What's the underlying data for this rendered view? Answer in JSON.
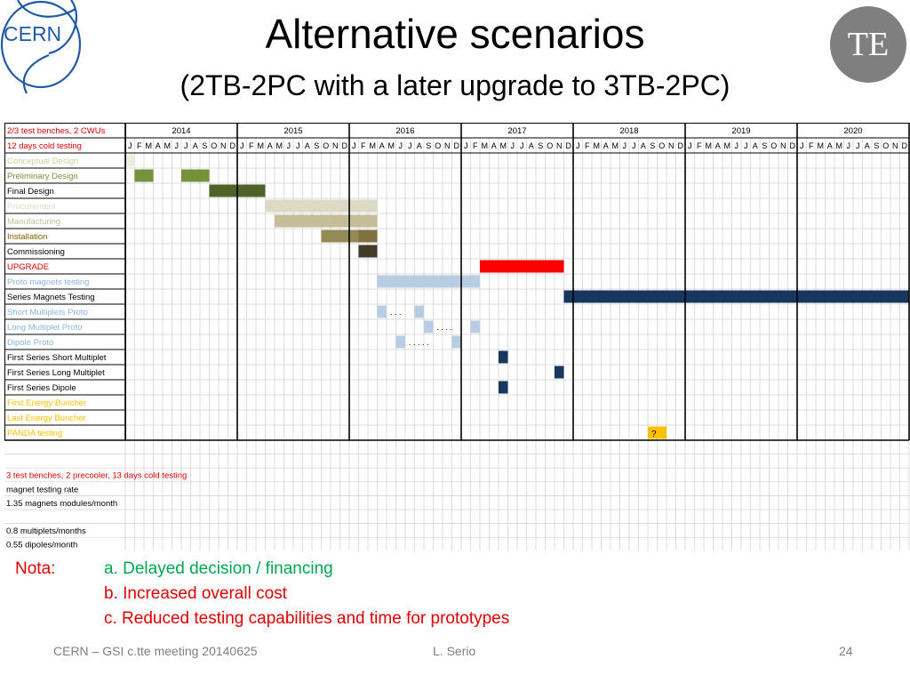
{
  "slide": {
    "title": "Alternative scenarios",
    "subtitle": "(2TB-2PC with a later upgrade to 3TB-2PC)",
    "badge": "TE",
    "logo_text": "CERN"
  },
  "gantt": {
    "header_row_labels": [
      "2/3 test benches, 2 CWUs",
      "12 days cold testing"
    ],
    "header_colors": [
      "#e00000",
      "#e00000"
    ],
    "years": [
      "2014",
      "2015",
      "2016",
      "2017",
      "2018",
      "2019",
      "2020"
    ],
    "months": [
      "J",
      "F",
      "M",
      "A",
      "M",
      "J",
      "J",
      "A",
      "S",
      "O",
      "N",
      "D"
    ],
    "tasks": [
      {
        "name": "Conceptual Design",
        "color": "#c4d79b",
        "bars": [
          {
            "start": 0,
            "end": 1,
            "color": "#ebf1de"
          }
        ]
      },
      {
        "name": "Preliminary Design",
        "color": "#76933c",
        "bars": [
          {
            "start": 1,
            "end": 3,
            "color": "#76933c"
          },
          {
            "start": 6,
            "end": 9,
            "color": "#76933c"
          }
        ]
      },
      {
        "name": "Final Design",
        "color": "#000000",
        "bars": [
          {
            "start": 9,
            "end": 15,
            "color": "#4f6228"
          }
        ]
      },
      {
        "name": "Procurement",
        "color": "#ddd9c4",
        "bars": [
          {
            "start": 15,
            "end": 27,
            "color": "#ddd9c4"
          }
        ]
      },
      {
        "name": "Manufacturing",
        "color": "#c4bd97",
        "bars": [
          {
            "start": 16,
            "end": 27,
            "color": "#c4bd97"
          }
        ]
      },
      {
        "name": "Installation",
        "color": "#7f6000",
        "bars": [
          {
            "start": 21,
            "end": 25,
            "color": "#948a54"
          },
          {
            "start": 25,
            "end": 27,
            "color": "#7f7240"
          }
        ]
      },
      {
        "name": "Commissioning",
        "color": "#000000",
        "bars": [
          {
            "start": 25,
            "end": 27,
            "color": "#403c26"
          }
        ]
      },
      {
        "name": "UPGRADE",
        "color": "#e00000",
        "bars": [
          {
            "start": 38,
            "end": 47,
            "color": "#ff0000"
          }
        ]
      },
      {
        "name": "Proto magnets testing",
        "color": "#8db4e2",
        "bars": [
          {
            "start": 27,
            "end": 38,
            "color": "#b8cce4"
          }
        ]
      },
      {
        "name": "Series Magnets Testing",
        "color": "#000000",
        "bars": [
          {
            "start": 47,
            "end": 84,
            "color": "#17375e"
          }
        ]
      },
      {
        "name": "Short Multiplets Proto",
        "color": "#8db4e2",
        "bars": [
          {
            "start": 27,
            "end": 28,
            "color": "#b8cce4"
          },
          {
            "start": 31,
            "end": 32,
            "color": "#b8cce4"
          }
        ]
      },
      {
        "name": "Long Multiplet Proto",
        "color": "#8db4e2",
        "bars": [
          {
            "start": 32,
            "end": 33,
            "color": "#b8cce4"
          },
          {
            "start": 37,
            "end": 38,
            "color": "#b8cce4"
          }
        ]
      },
      {
        "name": "Dipole Proto",
        "color": "#8db4e2",
        "bars": [
          {
            "start": 29,
            "end": 30,
            "color": "#b8cce4"
          },
          {
            "start": 35,
            "end": 36,
            "color": "#b8cce4"
          }
        ]
      },
      {
        "name": "First Series Short Multiplet",
        "color": "#000000",
        "bars": [
          {
            "start": 40,
            "end": 41,
            "color": "#17375e"
          }
        ]
      },
      {
        "name": "First Series Long Multiplet",
        "color": "#000000",
        "bars": [
          {
            "start": 46,
            "end": 47,
            "color": "#17375e"
          }
        ]
      },
      {
        "name": "First Series Dipole",
        "color": "#000000",
        "bars": [
          {
            "start": 40,
            "end": 41,
            "color": "#17375e"
          }
        ]
      },
      {
        "name": "First Energy Buncher",
        "color": "#ffc000",
        "bars": []
      },
      {
        "name": "Last Energy Buncher",
        "color": "#ffc000",
        "bars": []
      },
      {
        "name": "PANDA testing",
        "color": "#ffc000",
        "bars": [
          {
            "start": 56,
            "end": 58,
            "color": "#ffc000",
            "label": "?"
          }
        ]
      }
    ],
    "dots": [
      {
        "row": 10,
        "after": 28,
        "text": ". . ."
      },
      {
        "row": 11,
        "after": 33,
        "text": ". . . ."
      },
      {
        "row": 12,
        "after": 30,
        "text": ". . . . ."
      }
    ],
    "notes": [
      {
        "text": "",
        "color": "#000000"
      },
      {
        "text": "",
        "color": "#000000"
      },
      {
        "text": "3 test benches, 2 precooler, 13 days cold testing",
        "color": "#e00000"
      },
      {
        "text": "magnet testing rate",
        "color": "#000000"
      },
      {
        "text": "1.35 magnets modules/month",
        "color": "#000000"
      },
      {
        "text": "",
        "color": "#000000"
      },
      {
        "text": "0.8 multiplets/months",
        "color": "#000000"
      },
      {
        "text": "0.55 dipoles/month",
        "color": "#000000"
      }
    ]
  },
  "nota": {
    "label": "Nota:",
    "items": [
      {
        "text": "a. Delayed decision / financing",
        "color": "#00a651"
      },
      {
        "text": "b. Increased overall cost",
        "color": "#e00000"
      },
      {
        "text": "c. Reduced testing capabilities and time for prototypes",
        "color": "#e00000"
      }
    ]
  },
  "footer": {
    "left": "CERN – GSI c.tte meeting 20140625",
    "center": "L. Serio",
    "right": "24"
  }
}
